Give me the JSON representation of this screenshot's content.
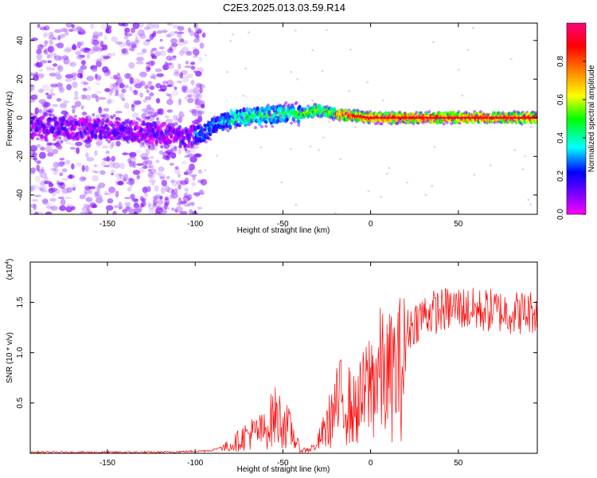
{
  "figure_title": "C2E3.2025.013.03.59.R14",
  "chart_data": [
    {
      "type": "heatmap",
      "xlabel": "Height of straight line (km)",
      "ylabel": "Frequency (Hz)",
      "xlim": [
        -194,
        95
      ],
      "ylim": [
        -50,
        49
      ],
      "x_ticks": [
        -150,
        -100,
        -50,
        0,
        50
      ],
      "y_ticks": [
        -40,
        -20,
        0,
        20,
        40
      ],
      "colorbar": {
        "label": "Normalized spectral amplitude",
        "range": [
          0,
          1
        ],
        "ticks": [
          0.0,
          0.2,
          0.4,
          0.6,
          0.8
        ],
        "tick_labels": [
          "0.0",
          "0.2",
          "0.4",
          "0.6",
          "0.8"
        ],
        "colormap": [
          "#ff00ff",
          "#8000ff",
          "#0000ff",
          "#00ffff",
          "#00ff00",
          "#ffff00",
          "#ff8000",
          "#ff0000",
          "#ff0080"
        ]
      },
      "ridge": {
        "x": [
          -194,
          -150,
          -120,
          -105,
          -95,
          -85,
          -75,
          -60,
          -50,
          -40,
          -30,
          -20,
          -10,
          0,
          20,
          40,
          60,
          80,
          95
        ],
        "y": [
          -5,
          -6,
          -8,
          -10,
          -8,
          -2,
          0,
          1,
          2,
          2,
          4,
          2,
          1,
          0,
          0,
          0,
          0,
          0,
          0
        ]
      }
    },
    {
      "type": "line",
      "xlabel": "Height of straight line (km)",
      "ylabel": "SNR (10 * v/v)",
      "y_multiplier": "(x10",
      "y_multiplier_exp": "4",
      "xlim": [
        -194,
        95
      ],
      "ylim": [
        0,
        1.9
      ],
      "x_ticks": [
        -150,
        -100,
        -50,
        0,
        50
      ],
      "y_ticks": [
        0.5,
        1.0,
        1.5
      ],
      "y_tick_labels": [
        "0.5",
        "1.0",
        "1.5"
      ],
      "color": "#ff0000",
      "envelope": {
        "x": [
          -194,
          -120,
          -100,
          -90,
          -80,
          -70,
          -60,
          -55,
          -50,
          -45,
          -40,
          -35,
          -30,
          -25,
          -20,
          -15,
          -10,
          -5,
          0,
          5,
          10,
          15,
          20,
          25,
          30,
          40,
          50,
          60,
          70,
          80,
          90,
          95
        ],
        "y": [
          0.01,
          0.01,
          0.02,
          0.03,
          0.1,
          0.25,
          0.3,
          0.5,
          0.42,
          0.28,
          0.04,
          0.05,
          0.15,
          0.35,
          0.6,
          0.75,
          0.55,
          0.7,
          0.95,
          1.05,
          1.0,
          1.1,
          1.2,
          1.3,
          1.38,
          1.42,
          1.45,
          1.42,
          1.42,
          1.4,
          1.4,
          1.42
        ]
      }
    }
  ]
}
